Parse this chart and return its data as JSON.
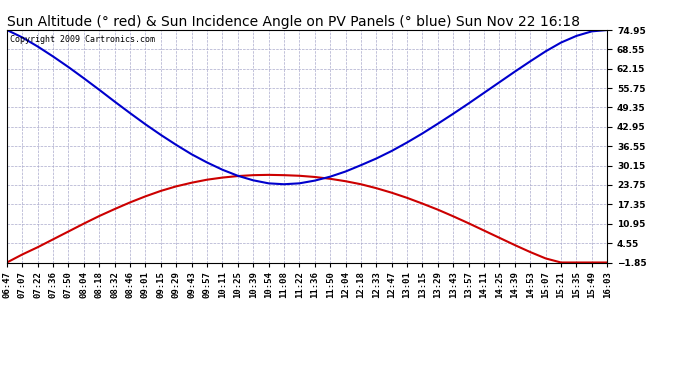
{
  "title": "Sun Altitude (° red) & Sun Incidence Angle on PV Panels (° blue) Sun Nov 22 16:18",
  "copyright": "Copyright 2009 Cartronics.com",
  "ylim": [
    -1.85,
    74.95
  ],
  "yticks": [
    74.95,
    68.55,
    62.15,
    55.75,
    49.35,
    42.95,
    36.55,
    30.15,
    23.75,
    17.35,
    10.95,
    4.55,
    -1.85
  ],
  "xtick_labels": [
    "06:47",
    "07:07",
    "07:22",
    "07:36",
    "07:50",
    "08:04",
    "08:18",
    "08:32",
    "08:46",
    "09:01",
    "09:15",
    "09:29",
    "09:43",
    "09:57",
    "10:11",
    "10:25",
    "10:39",
    "10:54",
    "11:08",
    "11:22",
    "11:36",
    "11:50",
    "12:04",
    "12:18",
    "12:33",
    "12:47",
    "13:01",
    "13:15",
    "13:29",
    "13:43",
    "13:57",
    "14:11",
    "14:25",
    "14:39",
    "14:53",
    "15:07",
    "15:21",
    "15:35",
    "15:49",
    "16:03"
  ],
  "red_curve": [
    -1.85,
    0.8,
    3.2,
    5.8,
    8.4,
    11.0,
    13.5,
    15.8,
    18.0,
    20.0,
    21.8,
    23.3,
    24.5,
    25.5,
    26.2,
    26.7,
    27.0,
    27.1,
    27.0,
    26.8,
    26.4,
    25.8,
    25.0,
    24.0,
    22.7,
    21.2,
    19.5,
    17.6,
    15.6,
    13.4,
    11.1,
    8.7,
    6.3,
    3.9,
    1.6,
    -0.5,
    -1.85,
    -1.85,
    -1.85,
    -1.85
  ],
  "blue_curve": [
    74.95,
    72.5,
    69.5,
    66.2,
    62.7,
    59.0,
    55.2,
    51.3,
    47.5,
    43.8,
    40.3,
    37.0,
    33.9,
    31.2,
    28.8,
    26.8,
    25.3,
    24.3,
    24.0,
    24.3,
    25.2,
    26.5,
    28.2,
    30.3,
    32.5,
    35.0,
    37.8,
    40.8,
    44.0,
    47.3,
    50.7,
    54.2,
    57.7,
    61.2,
    64.6,
    67.9,
    70.8,
    73.0,
    74.5,
    74.95
  ],
  "red_color": "#cc0000",
  "blue_color": "#0000cc",
  "bg_color": "#ffffff",
  "grid_color": "#aaaacc",
  "title_fontsize": 10,
  "tick_fontsize": 6.5,
  "copyright_fontsize": 6
}
